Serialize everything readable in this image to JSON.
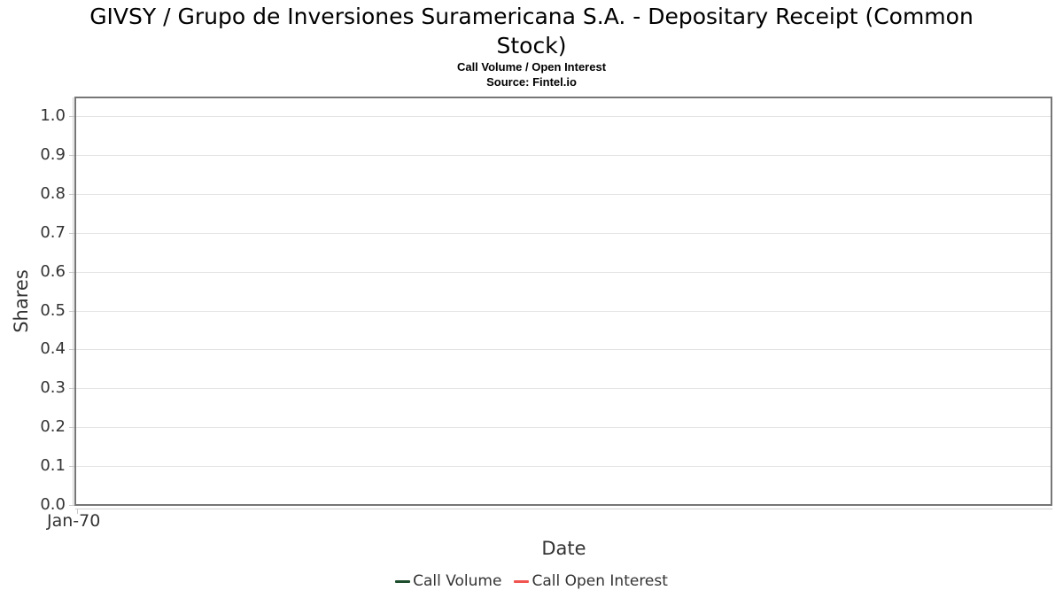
{
  "header": {
    "title_line1": "GIVSY / Grupo de Inversiones Suramericana S.A. - Depositary Receipt (Common",
    "title_line2": "Stock)",
    "subtitle": "Call Volume / Open Interest",
    "source": "Source: Fintel.io"
  },
  "chart_data": {
    "type": "line",
    "title": "GIVSY / Grupo de Inversiones Suramericana S.A. - Depositary Receipt (Common Stock)",
    "subtitle": "Call Volume / Open Interest",
    "source": "Source: Fintel.io",
    "xlabel": "Date",
    "ylabel": "Shares",
    "x_tick_labels": [
      "Jan-70"
    ],
    "y_tick_labels": [
      "0.0",
      "0.1",
      "0.2",
      "0.3",
      "0.4",
      "0.5",
      "0.6",
      "0.7",
      "0.8",
      "0.9",
      "1.0"
    ],
    "ylim": [
      0.0,
      1.05
    ],
    "grid": "horizontal",
    "legend_position": "bottom",
    "series": [
      {
        "name": "Call Volume",
        "color": "#1d4d2c",
        "x": [],
        "values": []
      },
      {
        "name": "Call Open Interest",
        "color": "#f05450",
        "x": [],
        "values": []
      }
    ],
    "colors": {
      "plot_border": "#767676",
      "gridline": "#e4e4e4",
      "axis_line": "#d0d0d0",
      "tick": "#c9c9c9",
      "label_text": "#333333",
      "title_text": "#000000"
    }
  }
}
